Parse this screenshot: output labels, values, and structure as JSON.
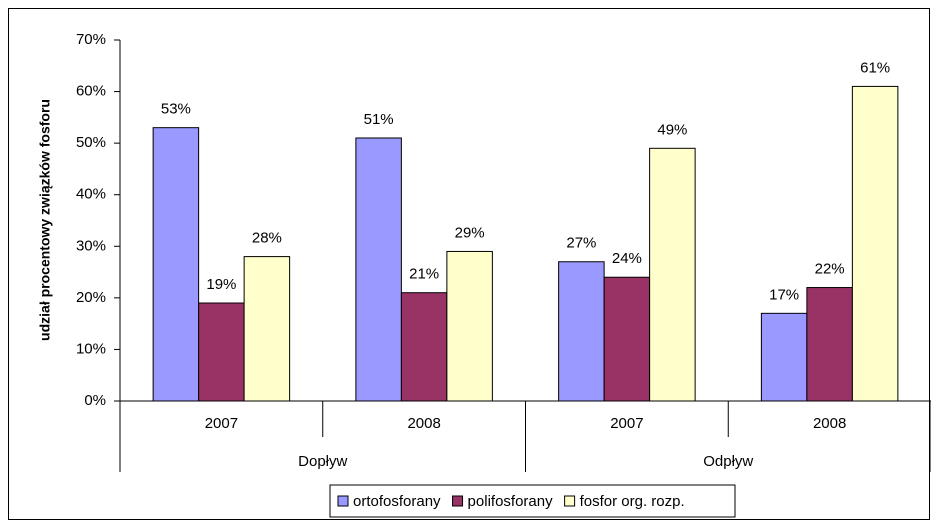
{
  "chart_data": {
    "type": "bar",
    "y_label": "udział procentowy związków fosforu",
    "categories": [
      "2007",
      "2008",
      "2007",
      "2008"
    ],
    "group_labels": [
      "Dopływ",
      "Odpływ"
    ],
    "series": [
      {
        "name": "ortofosforany",
        "color": "#9999ff",
        "values": [
          53,
          51,
          27,
          17
        ],
        "value_labels": [
          "53%",
          "51%",
          "27%",
          "17%"
        ]
      },
      {
        "name": "polifosforany",
        "color": "#993366",
        "values": [
          19,
          21,
          24,
          22
        ],
        "value_labels": [
          "19%",
          "21%",
          "24%",
          "22%"
        ]
      },
      {
        "name": "fosfor org. rozp.",
        "color": "#ffffcc",
        "values": [
          28,
          29,
          49,
          61
        ],
        "value_labels": [
          "28%",
          "29%",
          "49%",
          "61%"
        ]
      }
    ],
    "ylim": [
      0,
      70
    ],
    "yticks": [
      {
        "value": 0,
        "label": "0%"
      },
      {
        "value": 10,
        "label": "10%"
      },
      {
        "value": 20,
        "label": "20%"
      },
      {
        "value": 30,
        "label": "30%"
      },
      {
        "value": 40,
        "label": "40%"
      },
      {
        "value": 50,
        "label": "50%"
      },
      {
        "value": 60,
        "label": "60%"
      },
      {
        "value": 70,
        "label": "70%"
      }
    ],
    "legend": "bottom"
  }
}
